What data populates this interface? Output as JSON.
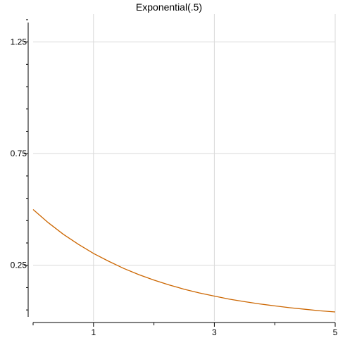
{
  "chart_data": {
    "type": "line",
    "title": "Exponential(.5)",
    "xlabel": "",
    "ylabel": "",
    "xlim": [
      0,
      5
    ],
    "ylim": [
      0,
      1.375
    ],
    "x_ticks_major": [
      1,
      3,
      5
    ],
    "x_ticks_minor": [
      0,
      2,
      4
    ],
    "y_ticks_major": [
      0.25,
      0.75,
      1.25
    ],
    "y_ticks_minor": [
      0.05,
      0.15,
      0.35,
      0.45,
      0.55,
      0.65,
      0.85,
      0.95,
      1.05,
      1.15,
      1.35
    ],
    "x_tick_labels": [
      "1",
      "3",
      "5"
    ],
    "y_tick_labels": [
      "0.25",
      "0.75",
      "1.25"
    ],
    "grid": true,
    "series": [
      {
        "color": "#cc6600",
        "x": [
          0,
          0.25,
          0.5,
          0.75,
          1,
          1.25,
          1.5,
          1.75,
          2,
          2.25,
          2.5,
          2.75,
          3,
          3.25,
          3.5,
          3.75,
          4,
          4.25,
          4.5,
          4.75,
          5
        ],
        "y": [
          0.5,
          0.441,
          0.389,
          0.344,
          0.303,
          0.268,
          0.236,
          0.208,
          0.184,
          0.162,
          0.143,
          0.126,
          0.112,
          0.098,
          0.087,
          0.077,
          0.068,
          0.06,
          0.053,
          0.046,
          0.041
        ]
      }
    ]
  }
}
